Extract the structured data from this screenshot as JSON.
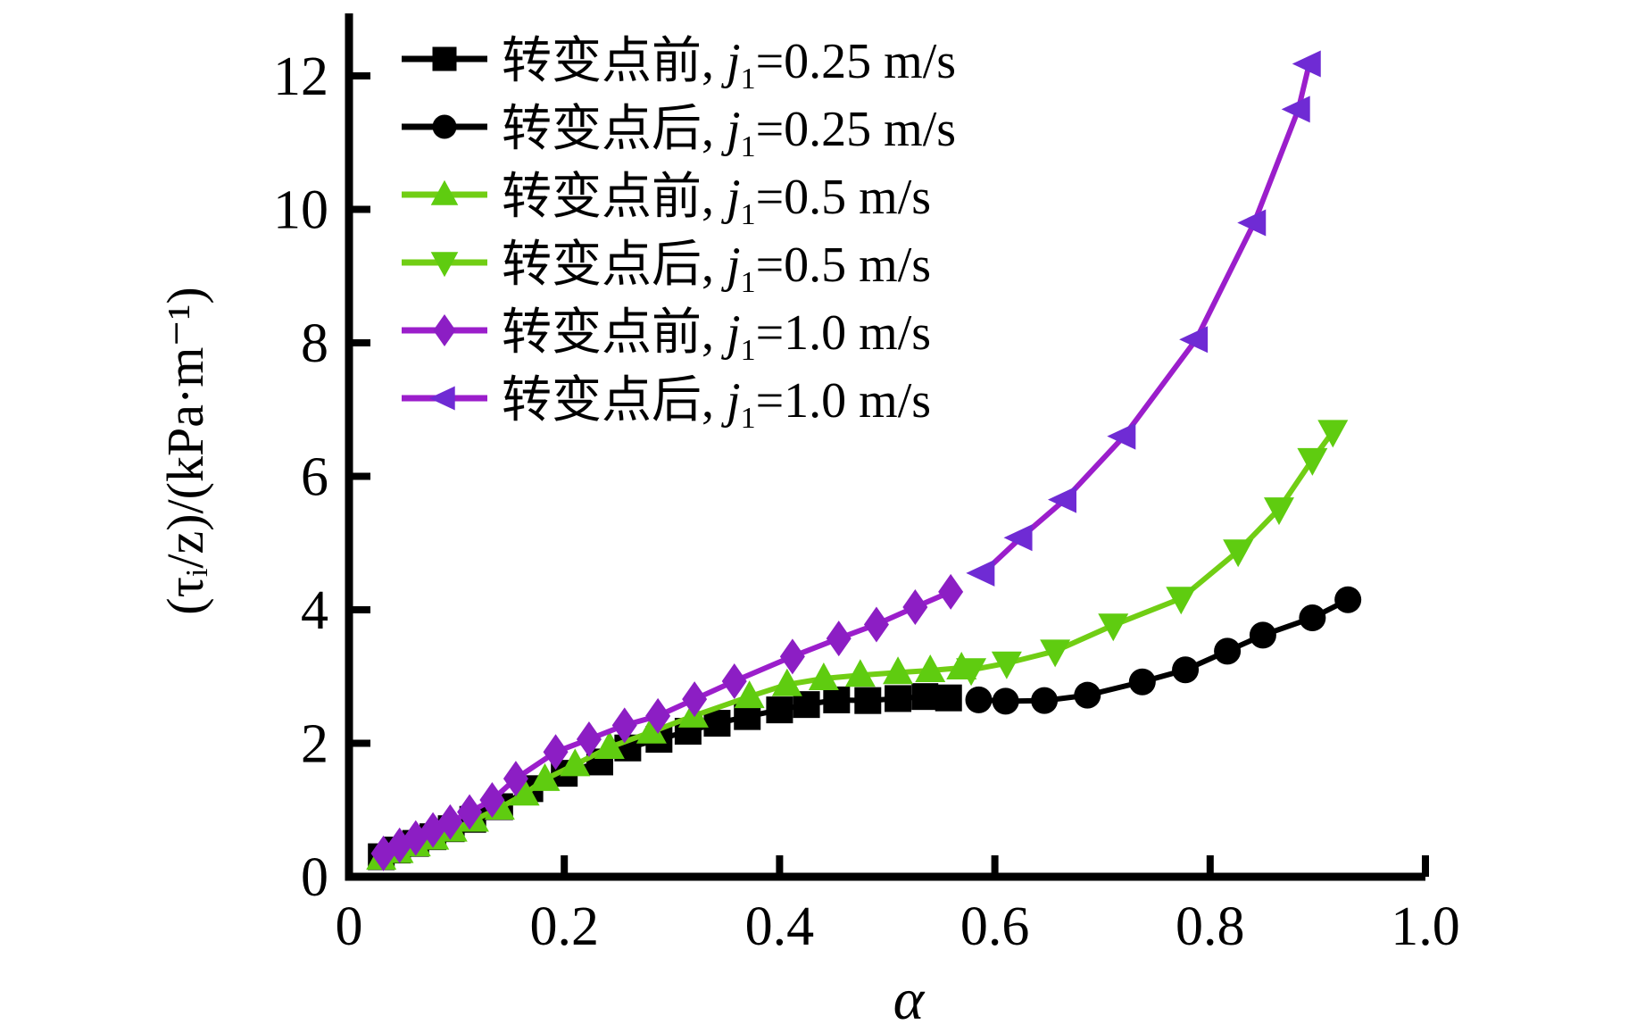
{
  "figure": {
    "background": "#ffffff",
    "axis_color": "#000000",
    "x_axis": {
      "label": "α",
      "tick_labels": [
        "0",
        "0.2",
        "0.4",
        "0.6",
        "0.8",
        "1.0"
      ],
      "tick_values": [
        0,
        0.2,
        0.4,
        0.6,
        0.8,
        1.0
      ],
      "min": 0,
      "max": 1.0
    },
    "y_axis": {
      "label": "(τᵢ/z)/(kPa·m⁻¹)",
      "tick_labels": [
        "0",
        "2",
        "4",
        "6",
        "8",
        "10",
        "12"
      ],
      "tick_values": [
        0,
        2,
        4,
        6,
        8,
        10,
        12
      ],
      "min": 0,
      "max": 12
    }
  },
  "legend": {
    "items": [
      {
        "marker": "square",
        "color": "#000000",
        "marker_color": "#000000",
        "pre": "转变点前, ",
        "var": "j",
        "sub": "1",
        "suffix": "=0.25 m/s"
      },
      {
        "marker": "circle",
        "color": "#000000",
        "marker_color": "#000000",
        "pre": "转变点后, ",
        "var": "j",
        "sub": "1",
        "suffix": "=0.25 m/s"
      },
      {
        "marker": "triangle-up",
        "color": "#71CE14",
        "marker_color": "#5FCC10",
        "pre": "转变点前, ",
        "var": "j",
        "sub": "1",
        "suffix": "=0.5 m/s"
      },
      {
        "marker": "triangle-down",
        "color": "#71CE14",
        "marker_color": "#5FCC10",
        "pre": "转变点后, ",
        "var": "j",
        "sub": "1",
        "suffix": "=0.5 m/s"
      },
      {
        "marker": "diamond",
        "color": "#9B1ECB",
        "marker_color": "#8C1EC4",
        "pre": "转变点前, ",
        "var": "j",
        "sub": "1",
        "suffix": "=1.0 m/s"
      },
      {
        "marker": "triangle-left",
        "color": "#9B1ECB",
        "marker_color": "#6F2BD4",
        "pre": "转变点后, ",
        "var": "j",
        "sub": "1",
        "suffix": "=1.0 m/s"
      }
    ]
  },
  "chart_data": {
    "type": "line",
    "title": "",
    "xlabel": "α",
    "ylabel": "(τᵢ/z)/(kPa·m⁻¹)",
    "xlim": [
      0,
      1.0
    ],
    "ylim": [
      0,
      12
    ],
    "grid": false,
    "legend_position": "top-left",
    "series": [
      {
        "name": "转变点前, j₁=0.25 m/s",
        "marker": "square",
        "color": "#000000",
        "marker_color": "#000000",
        "points": [
          [
            0.03,
            0.3
          ],
          [
            0.045,
            0.4
          ],
          [
            0.062,
            0.5
          ],
          [
            0.078,
            0.6
          ],
          [
            0.095,
            0.72
          ],
          [
            0.115,
            0.86
          ],
          [
            0.14,
            1.05
          ],
          [
            0.168,
            1.32
          ],
          [
            0.2,
            1.55
          ],
          [
            0.233,
            1.72
          ],
          [
            0.259,
            1.93
          ],
          [
            0.288,
            2.06
          ],
          [
            0.315,
            2.18
          ],
          [
            0.342,
            2.3
          ],
          [
            0.37,
            2.4
          ],
          [
            0.4,
            2.5
          ],
          [
            0.425,
            2.58
          ],
          [
            0.453,
            2.65
          ],
          [
            0.482,
            2.64
          ],
          [
            0.51,
            2.67
          ],
          [
            0.535,
            2.7
          ],
          [
            0.557,
            2.68
          ]
        ]
      },
      {
        "name": "转变点后, j₁=0.25 m/s",
        "marker": "circle",
        "color": "#000000",
        "marker_color": "#000000",
        "points": [
          [
            0.585,
            2.65
          ],
          [
            0.61,
            2.63
          ],
          [
            0.646,
            2.64
          ],
          [
            0.686,
            2.72
          ],
          [
            0.737,
            2.92
          ],
          [
            0.777,
            3.1
          ],
          [
            0.816,
            3.38
          ],
          [
            0.849,
            3.62
          ],
          [
            0.895,
            3.88
          ],
          [
            0.928,
            4.15
          ]
        ]
      },
      {
        "name": "转变点前, j₁=0.5 m/s",
        "marker": "triangle-up",
        "color": "#71CE14",
        "marker_color": "#5FCC10",
        "points": [
          [
            0.03,
            0.28
          ],
          [
            0.046,
            0.38
          ],
          [
            0.062,
            0.48
          ],
          [
            0.079,
            0.58
          ],
          [
            0.096,
            0.7
          ],
          [
            0.116,
            0.85
          ],
          [
            0.14,
            1.03
          ],
          [
            0.163,
            1.24
          ],
          [
            0.182,
            1.46
          ],
          [
            0.21,
            1.68
          ],
          [
            0.242,
            1.94
          ],
          [
            0.281,
            2.17
          ],
          [
            0.32,
            2.41
          ],
          [
            0.372,
            2.7
          ],
          [
            0.407,
            2.88
          ],
          [
            0.441,
            2.97
          ],
          [
            0.475,
            3.02
          ],
          [
            0.51,
            3.06
          ],
          [
            0.54,
            3.09
          ],
          [
            0.569,
            3.13
          ]
        ]
      },
      {
        "name": "转变点后, j₁=0.5 m/s",
        "marker": "triangle-down",
        "color": "#71CE14",
        "marker_color": "#5FCC10",
        "points": [
          [
            0.578,
            3.1
          ],
          [
            0.611,
            3.2
          ],
          [
            0.656,
            3.38
          ],
          [
            0.71,
            3.77
          ],
          [
            0.773,
            4.17
          ],
          [
            0.826,
            4.88
          ],
          [
            0.864,
            5.51
          ],
          [
            0.895,
            6.25
          ],
          [
            0.914,
            6.67
          ]
        ]
      },
      {
        "name": "转变点前, j₁=1.0 m/s",
        "marker": "diamond",
        "color": "#9B1ECB",
        "marker_color": "#8C1EC4",
        "points": [
          [
            0.032,
            0.35
          ],
          [
            0.047,
            0.47
          ],
          [
            0.062,
            0.58
          ],
          [
            0.078,
            0.7
          ],
          [
            0.094,
            0.82
          ],
          [
            0.112,
            0.97
          ],
          [
            0.133,
            1.15
          ],
          [
            0.155,
            1.47
          ],
          [
            0.192,
            1.87
          ],
          [
            0.223,
            2.06
          ],
          [
            0.256,
            2.27
          ],
          [
            0.287,
            2.41
          ],
          [
            0.321,
            2.66
          ],
          [
            0.358,
            2.93
          ],
          [
            0.412,
            3.3
          ],
          [
            0.455,
            3.57
          ],
          [
            0.49,
            3.78
          ],
          [
            0.526,
            4.04
          ],
          [
            0.559,
            4.27
          ]
        ]
      },
      {
        "name": "转变点后, j₁=1.0 m/s",
        "marker": "triangle-left",
        "color": "#9B1ECB",
        "marker_color": "#6F2BD4",
        "points": [
          [
            0.589,
            4.55
          ],
          [
            0.624,
            5.08
          ],
          [
            0.665,
            5.65
          ],
          [
            0.72,
            6.6
          ],
          [
            0.787,
            8.05
          ],
          [
            0.841,
            9.8
          ],
          [
            0.882,
            11.5
          ],
          [
            0.892,
            12.18
          ]
        ]
      }
    ]
  }
}
